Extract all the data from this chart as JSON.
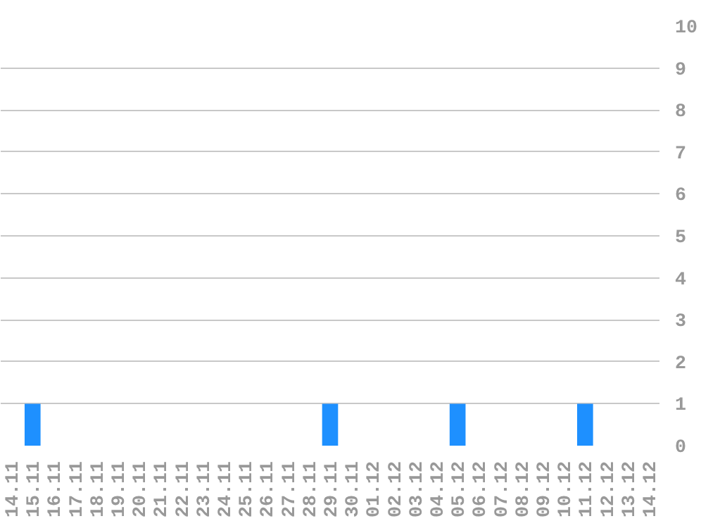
{
  "chart_data": {
    "type": "bar",
    "categories": [
      "14.11",
      "15.11",
      "16.11",
      "17.11",
      "18.11",
      "19.11",
      "20.11",
      "21.11",
      "22.11",
      "23.11",
      "24.11",
      "25.11",
      "26.11",
      "27.11",
      "28.11",
      "29.11",
      "30.11",
      "01.12",
      "02.12",
      "03.12",
      "04.12",
      "05.12",
      "06.12",
      "07.12",
      "08.12",
      "09.12",
      "10.12",
      "11.12",
      "12.12",
      "13.12",
      "14.12"
    ],
    "values": [
      0,
      1,
      0,
      0,
      0,
      0,
      0,
      0,
      0,
      0,
      0,
      0,
      0,
      0,
      0,
      1,
      0,
      0,
      0,
      0,
      0,
      1,
      0,
      0,
      0,
      0,
      0,
      1,
      0,
      0,
      0
    ],
    "color": "#1e90ff",
    "ylim": [
      0,
      10
    ],
    "yticks": [
      0,
      1,
      2,
      3,
      4,
      5,
      6,
      7,
      8,
      9,
      10
    ],
    "grid": "y"
  }
}
